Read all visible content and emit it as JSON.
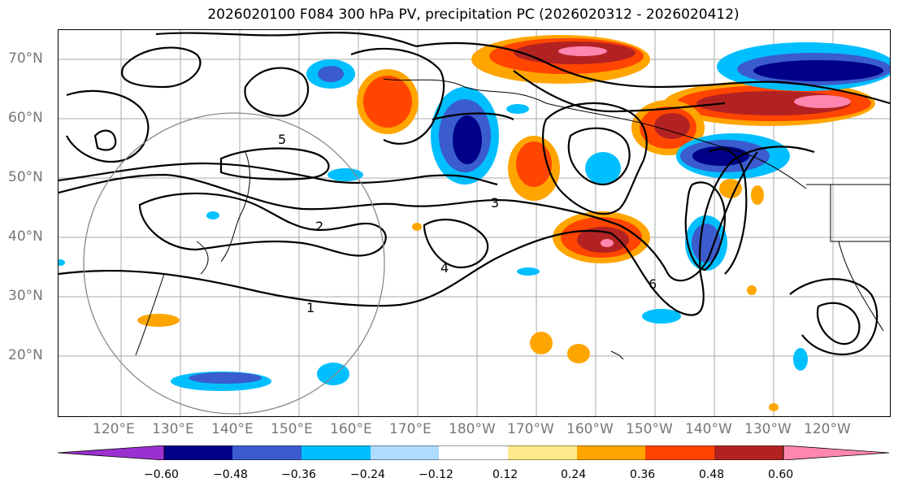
{
  "title": "2026020100 F084 300 hPa PV, precipitation PC (2026020312 - 2026020412)",
  "map": {
    "lat_labels": [
      "70°N",
      "60°N",
      "50°N",
      "40°N",
      "30°N",
      "20°N"
    ],
    "lon_labels": [
      "120°E",
      "130°E",
      "140°E",
      "150°E",
      "160°E",
      "170°E",
      "180°W",
      "170°W",
      "160°W",
      "150°W",
      "140°W",
      "130°W",
      "120°W"
    ],
    "contour_labels": [
      "1",
      "2",
      "3",
      "4",
      "5",
      "6"
    ]
  },
  "colorbar": {
    "tick_labels": [
      "−0.60",
      "−0.48",
      "−0.36",
      "−0.24",
      "−0.12",
      "0.12",
      "0.24",
      "0.36",
      "0.48",
      "0.60"
    ],
    "colors": [
      "#9b30d0",
      "#000088",
      "#3a5ccc",
      "#00bfff",
      "#aedcff",
      "#ffffff",
      "#ffe98a",
      "#ffa500",
      "#ff4500",
      "#b22222",
      "#ff86b0"
    ]
  }
}
